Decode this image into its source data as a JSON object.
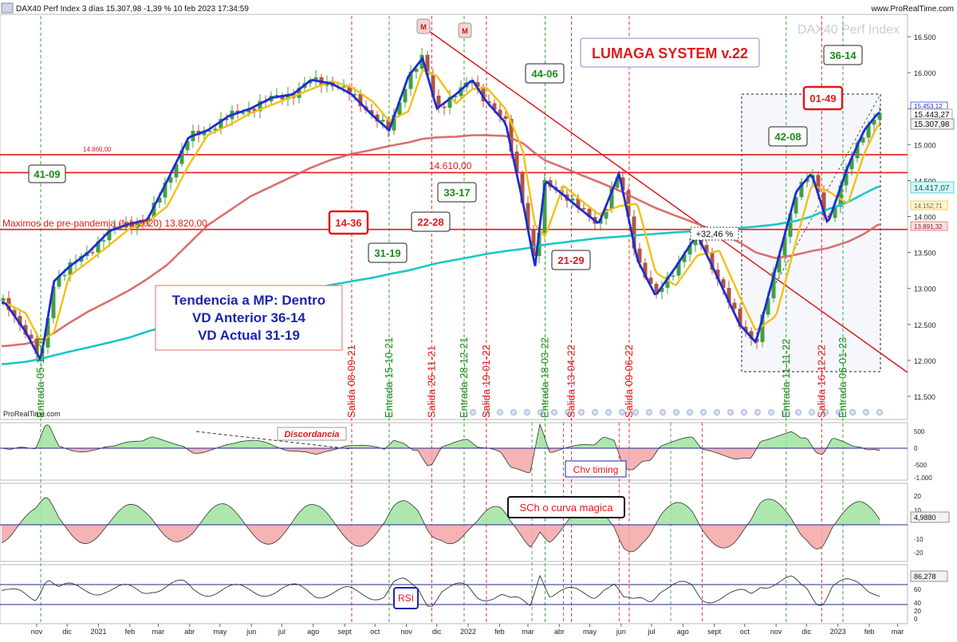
{
  "header": {
    "left": "DAX40 Perf Index 3 días 15.307,98 -1,39 % 10 feb 2023 17:34:59",
    "right": "www.ProRealTime.com",
    "watermark": "DAX40 Perf Index",
    "source_tag": "ProRealTime.com"
  },
  "title_box": "LUMAGA SYSTEM v.22",
  "trend_box": {
    "line1": "Tendencia a MP: Dentro",
    "line2": "VD Anterior 36-14",
    "line3": "VD Actual 31-19"
  },
  "levels": {
    "l14860": "14.860,00",
    "l14610": "14.610,00",
    "l13820": "Maximos de pre-pandemia (feb 2020) 13.820,00"
  },
  "markers": {
    "m1": "M",
    "m2": "M"
  },
  "boxes": [
    {
      "text": "41-09",
      "color": "green"
    },
    {
      "text": "14-36",
      "color": "red"
    },
    {
      "text": "31-19",
      "color": "green"
    },
    {
      "text": "22-28",
      "color": "red"
    },
    {
      "text": "33-17",
      "color": "green"
    },
    {
      "text": "44-06",
      "color": "green"
    },
    {
      "text": "21-29",
      "color": "red"
    },
    {
      "text": "42-08",
      "color": "green"
    },
    {
      "text": "01-49",
      "color": "red"
    },
    {
      "text": "36-14",
      "color": "green"
    }
  ],
  "pct_label": "+32,46 %",
  "signals": [
    {
      "text": "Entrada 05-11-20",
      "color": "green"
    },
    {
      "text": "Salida 08-09-21",
      "color": "red"
    },
    {
      "text": "Entrada 15-10-21",
      "color": "green"
    },
    {
      "text": "Salida 26-11-21",
      "color": "red"
    },
    {
      "text": "Entrada 28-12-21",
      "color": "green"
    },
    {
      "text": "Salida 19-01-22",
      "color": "red"
    },
    {
      "text": "Entrada 18-03-22",
      "color": "green"
    },
    {
      "text": "Salida 13-04-22",
      "color": "red"
    },
    {
      "text": "Salida 09-06-22",
      "color": "red"
    },
    {
      "text": "Entrada 11-11-22",
      "color": "green"
    },
    {
      "text": "Salida 16-12-22",
      "color": "red"
    },
    {
      "text": "Entrada 06-01-23",
      "color": "green"
    }
  ],
  "price_badges": {
    "b1": "15.453,12",
    "b2": "15.443,27",
    "b3": "15.307,98",
    "b4": "14.417,07",
    "b5": "14.152,71",
    "b6": "13.891,32"
  },
  "panel_labels": {
    "discordancia": "Discordancia",
    "chv": "Chv timing",
    "sch": "SCh o curva magica",
    "rsi": "RSI"
  },
  "osc_badges": {
    "sch_value": "4,9880",
    "rsi_value": "86,278"
  },
  "axes": {
    "price_ticks": [
      "16.500",
      "16.000",
      "15.500",
      "15.000",
      "14.500",
      "14.000",
      "13.500",
      "13.000",
      "12.500",
      "12.000",
      "11.500"
    ],
    "p2_ticks": [
      "500",
      "0",
      "-500",
      "-1.000"
    ],
    "p3_ticks": [
      "20",
      "10",
      "-10",
      "-20"
    ],
    "p4_ticks": [
      "80",
      "60",
      "40",
      "20",
      "0"
    ],
    "months": [
      "nov",
      "dic",
      "2021",
      "feb",
      "mar",
      "abr",
      "may",
      "jun",
      "jul",
      "ago",
      "sept",
      "oct",
      "nov",
      "dic",
      "2022",
      "feb",
      "mar",
      "abr",
      "may",
      "jun",
      "jul",
      "ago",
      "sept",
      "oct",
      "nov",
      "dic",
      "2023",
      "feb",
      "mar"
    ]
  },
  "colors": {
    "up": "#41a041",
    "down": "#b0553c",
    "fast_ma": "#1c2bd6",
    "ma_yellow": "#f2c015",
    "ma_red": "#d66060",
    "ma_cyan": "#1cc6c6",
    "level": "#e0191c",
    "osc_pos": "#9fe39f",
    "osc_neg": "#f3a6a6"
  },
  "chart_data": {
    "type": "line",
    "xlabel": "",
    "ylabel": "",
    "ylim": [
      11200,
      16700
    ],
    "x": [
      "2020-10-01",
      "2020-10-21",
      "2020-11-05",
      "2020-11-18",
      "2020-12-03",
      "2020-12-22",
      "2021-01-12",
      "2021-02-01",
      "2021-02-18",
      "2021-03-10",
      "2021-03-31",
      "2021-04-19",
      "2021-05-10",
      "2021-05-31",
      "2021-06-21",
      "2021-07-12",
      "2021-07-30",
      "2021-08-19",
      "2021-09-08",
      "2021-09-29",
      "2021-10-15",
      "2021-11-03",
      "2021-11-17",
      "2021-12-01",
      "2021-12-20",
      "2022-01-05",
      "2022-01-19",
      "2022-02-07",
      "2022-02-24",
      "2022-03-08",
      "2022-03-18",
      "2022-04-05",
      "2022-04-22",
      "2022-05-10",
      "2022-05-30",
      "2022-06-17",
      "2022-07-05",
      "2022-07-25",
      "2022-08-15",
      "2022-09-06",
      "2022-09-26",
      "2022-10-12",
      "2022-11-01",
      "2022-11-21",
      "2022-12-06",
      "2022-12-22",
      "2023-01-11",
      "2023-01-27",
      "2023-02-10"
    ],
    "series": [
      {
        "values": [
          12800,
          12400,
          12000,
          13100,
          13300,
          13500,
          13800,
          13900,
          13950,
          14500,
          15100,
          15200,
          15400,
          15500,
          15650,
          15700,
          15900,
          15850,
          15700,
          15400,
          15200,
          15950,
          16200,
          15500,
          15700,
          15900,
          15600,
          15300,
          14200,
          13300,
          14500,
          14300,
          14100,
          13900,
          14600,
          13400,
          12900,
          13300,
          13750,
          13100,
          12500,
          12250,
          13300,
          14350,
          14600,
          13900,
          14700,
          15200,
          15443
        ]
      },
      {
        "values": [
          12200,
          12230,
          12280,
          12380,
          12520,
          12680,
          12830,
          12980,
          13130,
          13330,
          13620,
          13880,
          14080,
          14280,
          14420,
          14560,
          14680,
          14790,
          14870,
          14930,
          14980,
          15030,
          15080,
          15100,
          15110,
          15130,
          15130,
          15120,
          15020,
          14880,
          14780,
          14680,
          14580,
          14480,
          14360,
          14240,
          14120,
          14010,
          13900,
          13780,
          13640,
          13500,
          13420,
          13470,
          13520,
          13560,
          13650,
          13760,
          13891
        ]
      },
      {
        "values": [
          11950,
          11980,
          12020,
          12070,
          12120,
          12180,
          12250,
          12320,
          12400,
          12480,
          12560,
          12640,
          12720,
          12800,
          12870,
          12930,
          12990,
          13050,
          13100,
          13150,
          13200,
          13250,
          13300,
          13350,
          13400,
          13440,
          13480,
          13520,
          13550,
          13580,
          13610,
          13640,
          13670,
          13700,
          13720,
          13740,
          13760,
          13780,
          13800,
          13820,
          13840,
          13860,
          13890,
          13940,
          14000,
          14100,
          14200,
          14320,
          14417
        ]
      }
    ]
  }
}
